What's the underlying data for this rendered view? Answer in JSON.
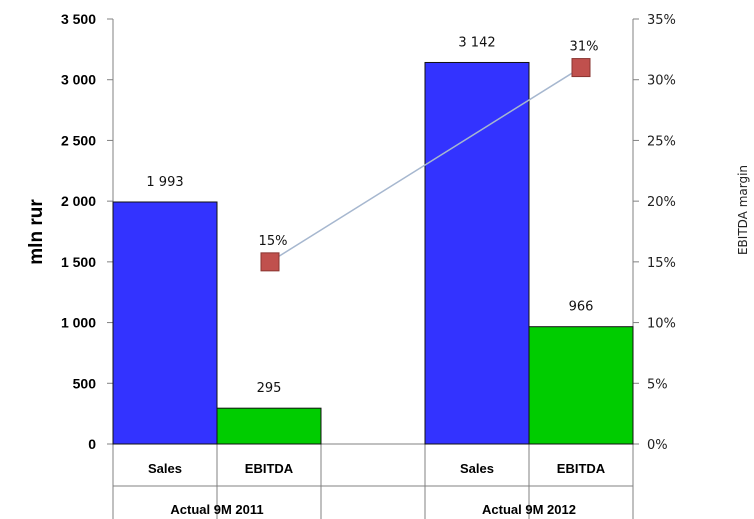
{
  "chart_data": {
    "type": "bar",
    "groups": [
      "Actual 9M 2011",
      "Actual 9M 2012"
    ],
    "categories": [
      "Sales",
      "EBITDA"
    ],
    "series": [
      {
        "name": "Sales",
        "values": [
          1993,
          3142
        ],
        "labels": [
          "1 993",
          "3 142"
        ],
        "color": "#3333FF"
      },
      {
        "name": "EBITDA",
        "values": [
          295,
          966
        ],
        "labels": [
          "295",
          "966"
        ],
        "color": "#00CC00"
      }
    ],
    "line_series": {
      "name": "EBITDA margin",
      "values": [
        15,
        31
      ],
      "labels": [
        "15%",
        "31%"
      ],
      "marker_color": "#C0504D",
      "line_color": "#A6B7CF"
    },
    "ylabel": "mln rur",
    "y2label": "EBITDA margin",
    "ylim": [
      0,
      3500
    ],
    "y2lim": [
      0,
      35
    ],
    "yticks": [
      "0",
      "500",
      "1 000",
      "1 500",
      "2 000",
      "2 500",
      "3 000",
      "3 500"
    ],
    "y2ticks": [
      "0%",
      "5%",
      "10%",
      "15%",
      "20%",
      "25%",
      "30%",
      "35%"
    ],
    "grid": false,
    "legend": "none"
  }
}
